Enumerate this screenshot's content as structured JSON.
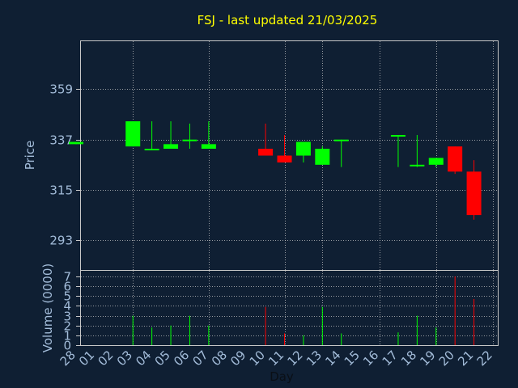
{
  "colors": {
    "background": "#0f1f33",
    "up": "#00ff00",
    "down": "#ff0000",
    "title": "#ffff00",
    "axis_text": "#a3bcd9",
    "grid": "#c8c8c8"
  },
  "chart_data": {
    "type": "candlestick",
    "title": "FSJ - last updated 21/03/2025",
    "xlabel": "Day",
    "price_panel": {
      "ylabel": "Price",
      "yticks": [
        293,
        315,
        337,
        359
      ],
      "ylim": [
        280,
        380
      ],
      "grid": true
    },
    "volume_panel": {
      "ylabel": "Volume (0000)",
      "yticks": [
        0,
        1,
        2,
        3,
        4,
        5,
        6,
        7
      ],
      "ylim": [
        0,
        7
      ],
      "grid": true
    },
    "day_labels": [
      "28",
      "01",
      "02",
      "03",
      "04",
      "05",
      "06",
      "07",
      "08",
      "09",
      "10",
      "11",
      "12",
      "13",
      "14",
      "15",
      "16",
      "17",
      "18",
      "19",
      "20",
      "21",
      "22"
    ],
    "vertical_grid_days": [
      3,
      7,
      11,
      13,
      16,
      19,
      22
    ],
    "candles": [
      {
        "day": "28",
        "open": 335,
        "close": 336,
        "high": 336,
        "low": 335,
        "volume": 0
      },
      {
        "day": "03",
        "open": 334,
        "close": 345,
        "high": 345,
        "low": 334,
        "volume": 3
      },
      {
        "day": "04",
        "open": 333,
        "close": 333,
        "high": 345,
        "low": 333,
        "volume": 1.8
      },
      {
        "day": "05",
        "open": 333,
        "close": 335,
        "high": 345,
        "low": 333,
        "volume": 2
      },
      {
        "day": "06",
        "open": 337,
        "close": 337,
        "high": 344,
        "low": 333,
        "volume": 3
      },
      {
        "day": "07",
        "open": 333,
        "close": 335,
        "high": 345,
        "low": 333,
        "volume": 2
      },
      {
        "day": "10",
        "open": 333,
        "close": 330,
        "high": 344,
        "low": 330,
        "volume": 3.9
      },
      {
        "day": "11",
        "open": 330,
        "close": 327,
        "high": 339,
        "low": 327,
        "volume": 1.2
      },
      {
        "day": "12",
        "open": 330,
        "close": 336,
        "high": 336,
        "low": 327,
        "volume": 1
      },
      {
        "day": "13",
        "open": 326,
        "close": 333,
        "high": 334,
        "low": 326,
        "volume": 3.9
      },
      {
        "day": "14",
        "open": 337,
        "close": 337,
        "high": 337,
        "low": 325,
        "volume": 1.2
      },
      {
        "day": "17",
        "open": 339,
        "close": 339,
        "high": 339,
        "low": 325,
        "volume": 1.3
      },
      {
        "day": "18",
        "open": 326,
        "close": 326,
        "high": 339,
        "low": 325,
        "volume": 3
      },
      {
        "day": "19",
        "open": 326,
        "close": 329,
        "high": 329,
        "low": 325,
        "volume": 1.8
      },
      {
        "day": "20",
        "open": 334,
        "close": 323,
        "high": 334,
        "low": 322,
        "volume": 7
      },
      {
        "day": "21",
        "open": 323,
        "close": 304,
        "high": 328,
        "low": 302,
        "volume": 4.7
      }
    ]
  }
}
